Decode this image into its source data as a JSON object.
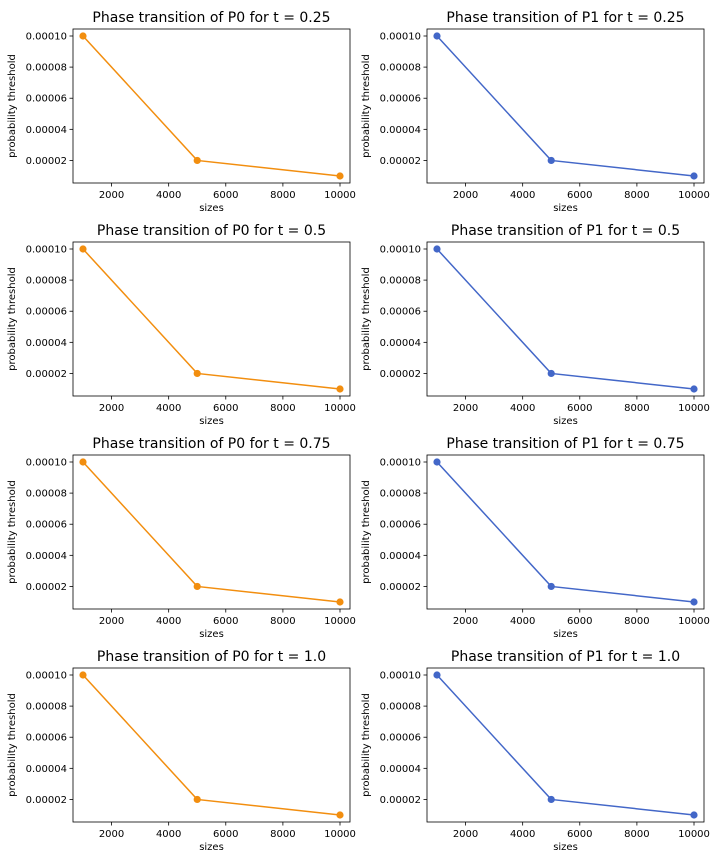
{
  "chart_data": [
    {
      "type": "line",
      "title": "Phase transition of P0 for t = 0.25",
      "xlabel": "sizes",
      "ylabel": "probability threshold",
      "x": [
        1000,
        5000,
        10000
      ],
      "y": [
        0.0001,
        2e-05,
        1e-05
      ],
      "color": "#f28e0f",
      "xlim": [
        650,
        10350
      ],
      "ylim": [
        5.5e-06,
        0.0001045
      ],
      "xticks": [
        2000,
        4000,
        6000,
        8000,
        10000
      ],
      "xtick_labels": [
        "2000",
        "4000",
        "6000",
        "8000",
        "10000"
      ],
      "yticks": [
        2e-05,
        4e-05,
        6e-05,
        8e-05,
        0.0001
      ],
      "ytick_labels": [
        "0.00002",
        "0.00004",
        "0.00006",
        "0.00008",
        "0.00010"
      ],
      "grid": false
    },
    {
      "type": "line",
      "title": "Phase transition of P1 for t = 0.25",
      "xlabel": "sizes",
      "ylabel": "probability threshold",
      "x": [
        1000,
        5000,
        10000
      ],
      "y": [
        0.0001,
        2e-05,
        1e-05
      ],
      "color": "#4367c8",
      "xlim": [
        650,
        10350
      ],
      "ylim": [
        5.5e-06,
        0.0001045
      ],
      "xticks": [
        2000,
        4000,
        6000,
        8000,
        10000
      ],
      "xtick_labels": [
        "2000",
        "4000",
        "6000",
        "8000",
        "10000"
      ],
      "yticks": [
        2e-05,
        4e-05,
        6e-05,
        8e-05,
        0.0001
      ],
      "ytick_labels": [
        "0.00002",
        "0.00004",
        "0.00006",
        "0.00008",
        "0.00010"
      ],
      "grid": false
    },
    {
      "type": "line",
      "title": "Phase transition of P0 for t = 0.5",
      "xlabel": "sizes",
      "ylabel": "probability threshold",
      "x": [
        1000,
        5000,
        10000
      ],
      "y": [
        0.0001,
        2e-05,
        1e-05
      ],
      "color": "#f28e0f",
      "xlim": [
        650,
        10350
      ],
      "ylim": [
        5.5e-06,
        0.0001045
      ],
      "xticks": [
        2000,
        4000,
        6000,
        8000,
        10000
      ],
      "xtick_labels": [
        "2000",
        "4000",
        "6000",
        "8000",
        "10000"
      ],
      "yticks": [
        2e-05,
        4e-05,
        6e-05,
        8e-05,
        0.0001
      ],
      "ytick_labels": [
        "0.00002",
        "0.00004",
        "0.00006",
        "0.00008",
        "0.00010"
      ],
      "grid": false
    },
    {
      "type": "line",
      "title": "Phase transition of P1 for t = 0.5",
      "xlabel": "sizes",
      "ylabel": "probability threshold",
      "x": [
        1000,
        5000,
        10000
      ],
      "y": [
        0.0001,
        2e-05,
        1e-05
      ],
      "color": "#4367c8",
      "xlim": [
        650,
        10350
      ],
      "ylim": [
        5.5e-06,
        0.0001045
      ],
      "xticks": [
        2000,
        4000,
        6000,
        8000,
        10000
      ],
      "xtick_labels": [
        "2000",
        "4000",
        "6000",
        "8000",
        "10000"
      ],
      "yticks": [
        2e-05,
        4e-05,
        6e-05,
        8e-05,
        0.0001
      ],
      "ytick_labels": [
        "0.00002",
        "0.00004",
        "0.00006",
        "0.00008",
        "0.00010"
      ],
      "grid": false
    },
    {
      "type": "line",
      "title": "Phase transition of P0 for t = 0.75",
      "xlabel": "sizes",
      "ylabel": "probability threshold",
      "x": [
        1000,
        5000,
        10000
      ],
      "y": [
        0.0001,
        2e-05,
        1e-05
      ],
      "color": "#f28e0f",
      "xlim": [
        650,
        10350
      ],
      "ylim": [
        5.5e-06,
        0.0001045
      ],
      "xticks": [
        2000,
        4000,
        6000,
        8000,
        10000
      ],
      "xtick_labels": [
        "2000",
        "4000",
        "6000",
        "8000",
        "10000"
      ],
      "yticks": [
        2e-05,
        4e-05,
        6e-05,
        8e-05,
        0.0001
      ],
      "ytick_labels": [
        "0.00002",
        "0.00004",
        "0.00006",
        "0.00008",
        "0.00010"
      ],
      "grid": false
    },
    {
      "type": "line",
      "title": "Phase transition of P1 for t = 0.75",
      "xlabel": "sizes",
      "ylabel": "probability threshold",
      "x": [
        1000,
        5000,
        10000
      ],
      "y": [
        0.0001,
        2e-05,
        1e-05
      ],
      "color": "#4367c8",
      "xlim": [
        650,
        10350
      ],
      "ylim": [
        5.5e-06,
        0.0001045
      ],
      "xticks": [
        2000,
        4000,
        6000,
        8000,
        10000
      ],
      "xtick_labels": [
        "2000",
        "4000",
        "6000",
        "8000",
        "10000"
      ],
      "yticks": [
        2e-05,
        4e-05,
        6e-05,
        8e-05,
        0.0001
      ],
      "ytick_labels": [
        "0.00002",
        "0.00004",
        "0.00006",
        "0.00008",
        "0.00010"
      ],
      "grid": false
    },
    {
      "type": "line",
      "title": "Phase transition of P0 for t = 1.0",
      "xlabel": "sizes",
      "ylabel": "probability threshold",
      "x": [
        1000,
        5000,
        10000
      ],
      "y": [
        0.0001,
        2e-05,
        1e-05
      ],
      "color": "#f28e0f",
      "xlim": [
        650,
        10350
      ],
      "ylim": [
        5.5e-06,
        0.0001045
      ],
      "xticks": [
        2000,
        4000,
        6000,
        8000,
        10000
      ],
      "xtick_labels": [
        "2000",
        "4000",
        "6000",
        "8000",
        "10000"
      ],
      "yticks": [
        2e-05,
        4e-05,
        6e-05,
        8e-05,
        0.0001
      ],
      "ytick_labels": [
        "0.00002",
        "0.00004",
        "0.00006",
        "0.00008",
        "0.00010"
      ],
      "grid": false
    },
    {
      "type": "line",
      "title": "Phase transition of P1 for t = 1.0",
      "xlabel": "sizes",
      "ylabel": "probability threshold",
      "x": [
        1000,
        5000,
        10000
      ],
      "y": [
        0.0001,
        2e-05,
        1e-05
      ],
      "color": "#4367c8",
      "xlim": [
        650,
        10350
      ],
      "ylim": [
        5.5e-06,
        0.0001045
      ],
      "xticks": [
        2000,
        4000,
        6000,
        8000,
        10000
      ],
      "xtick_labels": [
        "2000",
        "4000",
        "6000",
        "8000",
        "10000"
      ],
      "yticks": [
        2e-05,
        4e-05,
        6e-05,
        8e-05,
        0.0001
      ],
      "ytick_labels": [
        "0.00002",
        "0.00004",
        "0.00006",
        "0.00008",
        "0.00010"
      ],
      "grid": false
    }
  ]
}
